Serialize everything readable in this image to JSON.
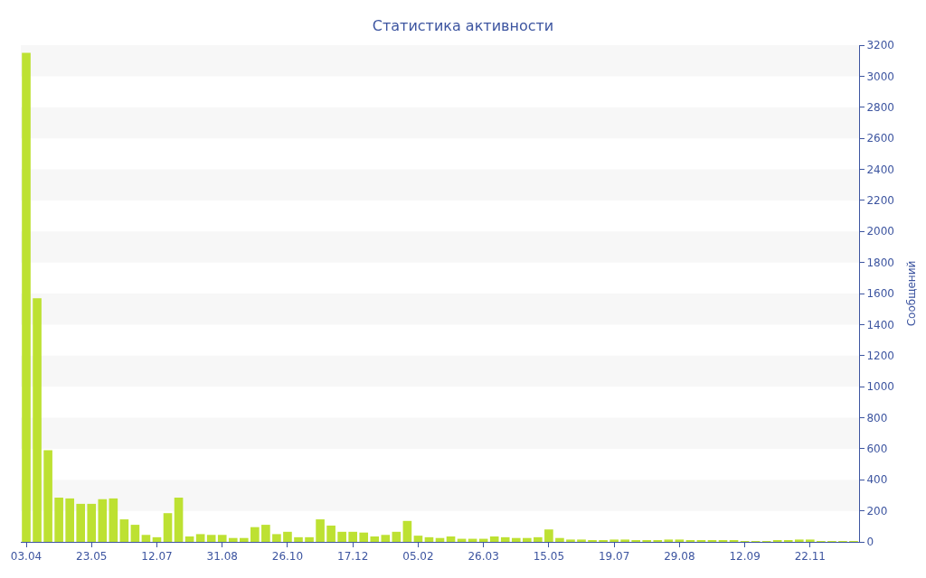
{
  "chart_data": {
    "type": "bar",
    "title": "Статистика активности",
    "ylabel": "Сообщений",
    "categories": [
      "03.04",
      null,
      null,
      null,
      null,
      null,
      "23.05",
      null,
      null,
      null,
      null,
      null,
      "12.07",
      null,
      null,
      null,
      null,
      null,
      "31.08",
      null,
      null,
      null,
      null,
      null,
      "26.10",
      null,
      null,
      null,
      null,
      null,
      "17.12",
      null,
      null,
      null,
      null,
      null,
      "05.02",
      null,
      null,
      null,
      null,
      null,
      "26.03",
      null,
      null,
      null,
      null,
      null,
      "15.05",
      null,
      null,
      null,
      null,
      null,
      "19.07",
      null,
      null,
      null,
      null,
      null,
      "29.08",
      null,
      null,
      null,
      null,
      null,
      "12.09",
      null,
      null,
      null,
      null,
      null,
      "22.11",
      null,
      null,
      null,
      null
    ],
    "values": [
      3150,
      1570,
      590,
      285,
      280,
      245,
      245,
      275,
      280,
      145,
      110,
      45,
      30,
      185,
      285,
      35,
      50,
      45,
      45,
      25,
      25,
      95,
      110,
      50,
      65,
      30,
      30,
      145,
      105,
      65,
      65,
      60,
      35,
      45,
      65,
      135,
      40,
      30,
      25,
      35,
      20,
      20,
      20,
      35,
      30,
      25,
      25,
      30,
      80,
      25,
      15,
      15,
      10,
      10,
      15,
      15,
      10,
      10,
      10,
      15,
      15,
      10,
      10,
      10,
      10,
      10,
      5,
      5,
      5,
      10,
      10,
      15,
      15,
      5,
      5,
      5,
      5
    ],
    "color": "#bde132",
    "ylim": [
      0,
      3200
    ],
    "yticks": [
      0,
      200,
      400,
      600,
      800,
      1000,
      1200,
      1400,
      1600,
      1800,
      2000,
      2200,
      2400,
      2600,
      2800,
      3000,
      3200
    ]
  }
}
